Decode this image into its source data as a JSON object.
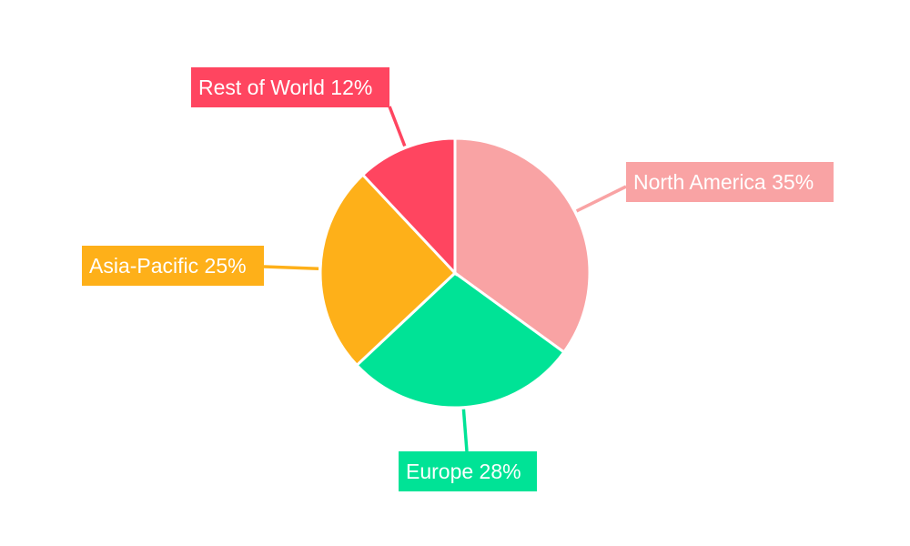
{
  "chart_data": {
    "type": "pie",
    "start_angle": "12 o'clock, clockwise",
    "slices": [
      {
        "label": "North America",
        "value": 35,
        "text": "North America 35%",
        "color": "#F9A3A4"
      },
      {
        "label": "Europe",
        "value": 28,
        "text": "Europe 28%",
        "color": "#00E396"
      },
      {
        "label": "Asia-Pacific",
        "value": 25,
        "text": "Asia-Pacific 25%",
        "color": "#FEB019"
      },
      {
        "label": "Rest of World",
        "value": 12,
        "text": "Rest of World 12%",
        "color": "#FF4560"
      }
    ],
    "legend": "none",
    "data_labels": "outside with leader lines"
  }
}
